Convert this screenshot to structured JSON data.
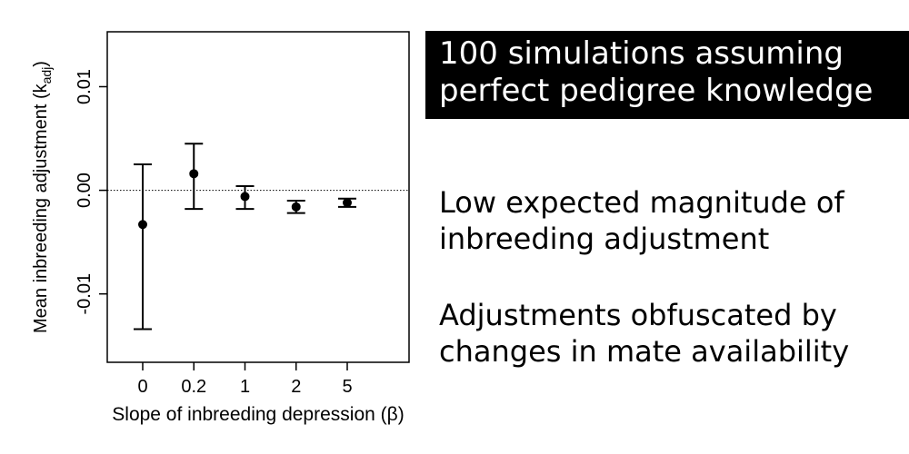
{
  "chart_data": {
    "type": "scatter",
    "subtype": "point-with-error-bars",
    "categories": [
      "0",
      "0.2",
      "1",
      "2",
      "5"
    ],
    "series": [
      {
        "values": [
          -0.0033,
          0.0016,
          -0.0006,
          -0.0016,
          -0.0012
        ],
        "lower": [
          -0.0134,
          -0.0018,
          -0.0018,
          -0.0022,
          -0.0016
        ],
        "upper": [
          0.0025,
          0.0045,
          0.0004,
          -0.001,
          -0.0008
        ]
      }
    ],
    "xlabel": "Slope of inbreeding depression (β)",
    "ylabel_main": "Mean inbreeding adjustment (k",
    "ylabel_sub": "adj",
    "ylabel_close": ")",
    "yticks": [
      "0.01",
      "0.00",
      "-0.01"
    ],
    "ytick_values": [
      0.01,
      0.0,
      -0.01
    ],
    "ylim": [
      -0.0166,
      0.0153
    ],
    "reference_line": 0.0,
    "grid": false,
    "legend": "none"
  },
  "callout": {
    "lines": [
      "100 simulations assuming",
      "perfect pedigree knowledge"
    ],
    "background": "#000000",
    "text_color": "#ffffff"
  },
  "notes": [
    {
      "lines": [
        "Low expected magnitude of",
        "inbreeding adjustment"
      ]
    },
    {
      "lines": [
        "Adjustments obfuscated by",
        "changes in mate availability"
      ]
    }
  ]
}
